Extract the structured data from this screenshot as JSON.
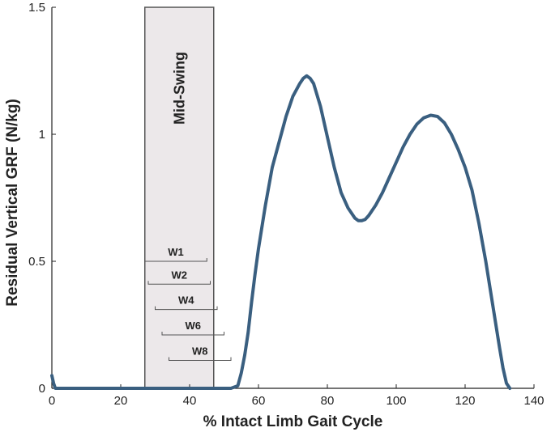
{
  "chart_data": {
    "type": "line",
    "xlabel": "% Intact Limb Gait Cycle",
    "ylabel": "Residual Vertical GRF (N/kg)",
    "xlim": [
      0,
      140
    ],
    "ylim": [
      0,
      1.5
    ],
    "xticks": [
      0,
      20,
      40,
      60,
      80,
      100,
      120,
      140
    ],
    "yticks": [
      0,
      0.5,
      1,
      1.5
    ],
    "xtick_labels": [
      "0",
      "20",
      "40",
      "60",
      "80",
      "100",
      "120",
      "140"
    ],
    "ytick_labels": [
      "0",
      "0.5",
      "1",
      "1.5"
    ],
    "grid": false,
    "series": [
      {
        "color": "#3a5f80",
        "x": [
          0,
          0.5,
          1,
          52,
          54,
          55,
          56,
          57,
          58,
          59,
          60,
          62,
          64,
          66,
          68,
          70,
          72,
          73,
          74,
          75,
          76,
          78,
          80,
          82,
          84,
          86,
          88,
          89,
          90,
          91,
          92,
          94,
          96,
          98,
          100,
          102,
          104,
          106,
          108,
          110,
          112,
          114,
          116,
          118,
          120,
          122,
          124,
          126,
          128,
          130,
          131,
          132,
          133
        ],
        "y": [
          0.05,
          0.02,
          0,
          0,
          0.01,
          0.06,
          0.13,
          0.22,
          0.34,
          0.45,
          0.55,
          0.72,
          0.87,
          0.97,
          1.07,
          1.15,
          1.2,
          1.22,
          1.23,
          1.22,
          1.2,
          1.11,
          0.99,
          0.87,
          0.77,
          0.71,
          0.67,
          0.66,
          0.66,
          0.665,
          0.68,
          0.72,
          0.77,
          0.83,
          0.89,
          0.95,
          1.0,
          1.04,
          1.065,
          1.075,
          1.07,
          1.045,
          1.0,
          0.94,
          0.87,
          0.78,
          0.65,
          0.5,
          0.33,
          0.16,
          0.08,
          0.02,
          0
        ]
      }
    ],
    "shaded_region": {
      "label": "Mid-Swing",
      "x": [
        27,
        47
      ],
      "y": [
        0,
        1.5
      ],
      "fill": "#ece8ea",
      "stroke": "#555555"
    },
    "windows": [
      {
        "label": "W1",
        "x": [
          27,
          45
        ],
        "y": 0.5
      },
      {
        "label": "W2",
        "x": [
          28,
          46
        ],
        "y": 0.41
      },
      {
        "label": "W4",
        "x": [
          30,
          48
        ],
        "y": 0.31
      },
      {
        "label": "W6",
        "x": [
          32,
          50
        ],
        "y": 0.21
      },
      {
        "label": "W8",
        "x": [
          34,
          52
        ],
        "y": 0.11
      }
    ]
  }
}
